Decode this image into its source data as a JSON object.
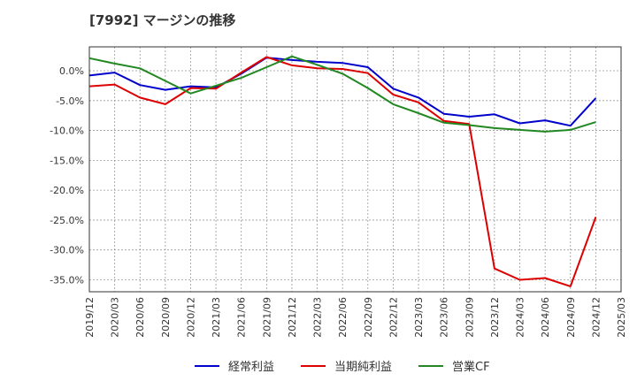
{
  "chart_data": {
    "type": "line",
    "title": "[7992]  マージンの推移",
    "x": [
      "2019/12",
      "2020/03",
      "2020/06",
      "2020/09",
      "2020/12",
      "2021/03",
      "2021/06",
      "2021/09",
      "2021/12",
      "2022/03",
      "2022/06",
      "2022/09",
      "2022/12",
      "2023/03",
      "2023/06",
      "2023/09",
      "2023/12",
      "2024/03",
      "2024/06",
      "2024/09",
      "2024/12",
      "2025/03"
    ],
    "y_ticks": [
      "0.0%",
      "-5.0%",
      "-10.0%",
      "-15.0%",
      "-20.0%",
      "-25.0%",
      "-30.0%",
      "-35.0%"
    ],
    "y_tick_values": [
      0,
      -5,
      -10,
      -15,
      -20,
      -25,
      -30,
      -35
    ],
    "ylim": [
      -37,
      4
    ],
    "grid": true,
    "legend_position": "bottom",
    "series": [
      {
        "name": "経常利益",
        "color": "#0000cc",
        "values": [
          -0.8,
          -0.3,
          -2.4,
          -3.2,
          -2.6,
          -2.8,
          -0.5,
          2.2,
          1.8,
          1.5,
          1.3,
          0.6,
          -3.0,
          -4.5,
          -7.2,
          -7.7,
          -7.3,
          -8.8,
          -8.3,
          -9.2,
          -4.6,
          null
        ]
      },
      {
        "name": "当期純利益",
        "color": "#dd0000",
        "values": [
          -2.6,
          -2.3,
          -4.5,
          -5.6,
          -2.9,
          -3.0,
          -0.3,
          2.3,
          0.9,
          0.4,
          0.3,
          -0.4,
          -4.0,
          -5.3,
          -8.4,
          -8.9,
          -33.1,
          -35.0,
          -34.7,
          -36.1,
          -24.5,
          null
        ]
      },
      {
        "name": "営業CF",
        "color": "#228822",
        "values": [
          2.1,
          1.2,
          0.4,
          -1.7,
          -3.8,
          -2.5,
          -1.2,
          0.6,
          2.4,
          1.0,
          -0.5,
          -2.9,
          -5.6,
          -7.1,
          -8.7,
          -9.1,
          -9.6,
          -9.9,
          -10.2,
          -9.9,
          -8.6,
          null
        ]
      }
    ]
  }
}
